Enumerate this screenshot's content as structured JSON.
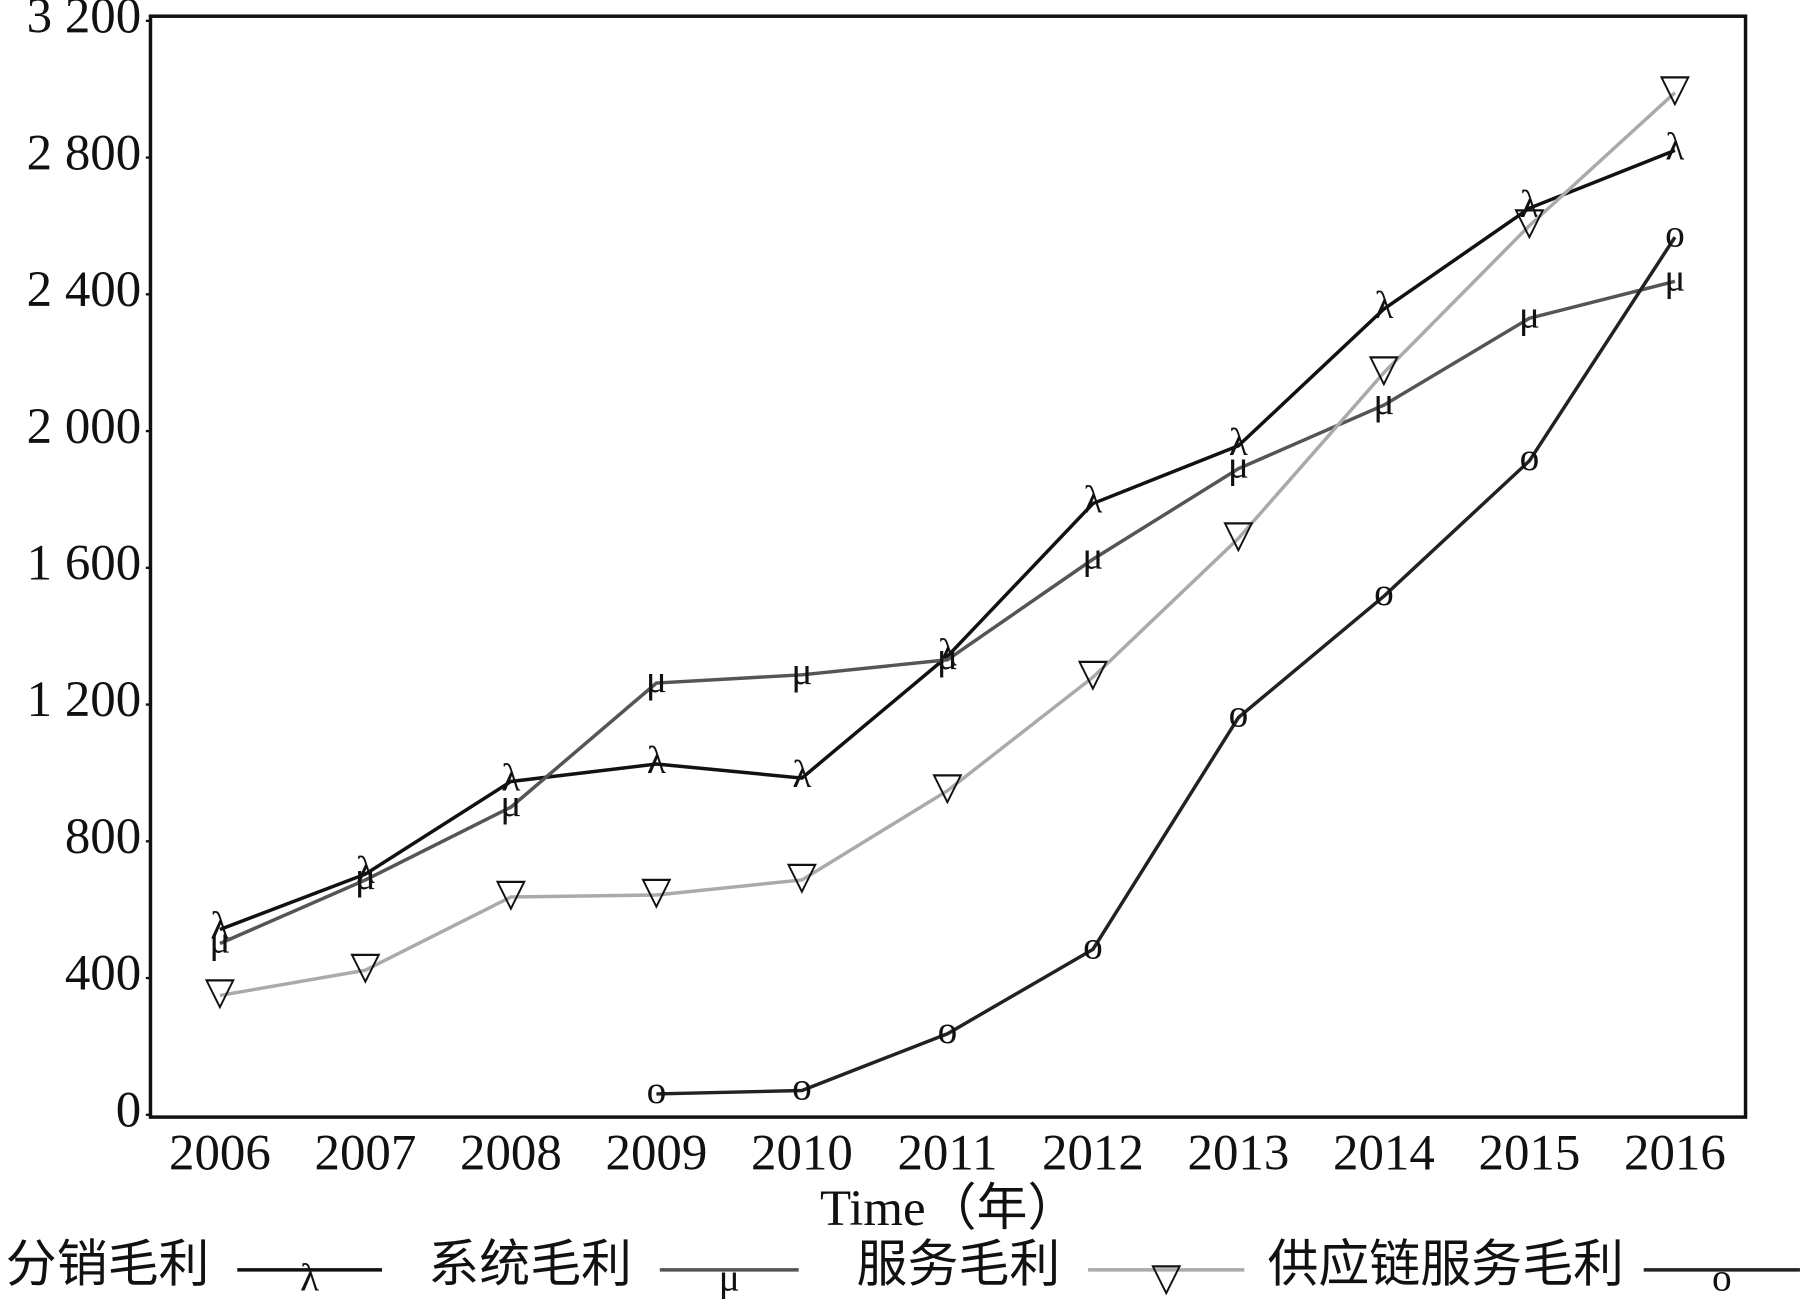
{
  "chart_data": {
    "type": "line",
    "x_label": "Time（年）",
    "categories": [
      "2006",
      "2007",
      "2008",
      "2009",
      "2010",
      "2011",
      "2012",
      "2013",
      "2014",
      "2015",
      "2016"
    ],
    "series": [
      {
        "name": "分销毛利",
        "marker": "λ",
        "color": "#111111",
        "values": [
          542,
          704,
          975,
          1026,
          985,
          1341,
          1788,
          1957,
          2357,
          2652,
          2821
        ]
      },
      {
        "name": "系统毛利",
        "marker": "μ",
        "color": "#555555",
        "values": [
          501,
          687,
          900,
          1263,
          1287,
          1331,
          1625,
          1890,
          2076,
          2330,
          2438
        ]
      },
      {
        "name": "服务毛利",
        "marker": "▽",
        "color": "#aaaaaa",
        "values": [
          349,
          423,
          637,
          643,
          687,
          948,
          1280,
          1686,
          2171,
          2601,
          2990
        ]
      },
      {
        "name": "供应链服务毛利",
        "marker": "o",
        "color": "#222222",
        "values": [
          null,
          null,
          null,
          61,
          71,
          237,
          484,
          1162,
          1517,
          1913,
          2567
        ]
      }
    ],
    "ylim": [
      0,
      3200
    ],
    "yticks": [
      0,
      400,
      800,
      {
        "value": 1200,
        "label": "1 200"
      },
      {
        "value": 1600,
        "label": "1 600"
      },
      {
        "value": 2000,
        "label": "2 000"
      },
      {
        "value": 2400,
        "label": "2 400"
      },
      {
        "value": 2800,
        "label": "2 800"
      },
      {
        "value": 3200,
        "label": "3 200"
      }
    ],
    "grid": false
  }
}
